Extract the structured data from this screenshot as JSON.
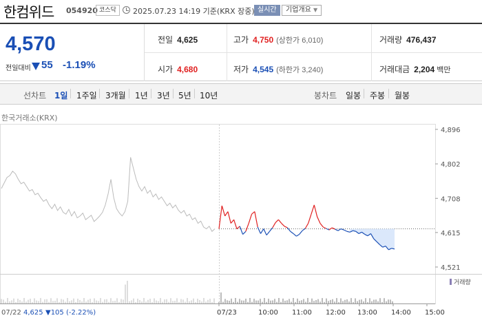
{
  "header": {
    "name": "한컴위드",
    "code": "054920",
    "market": "코스닥",
    "asof": "2025.07.23 14:19 기준(KRX 장중)",
    "realtime": "실시간",
    "company": "기업개요"
  },
  "now": {
    "price": "4,570",
    "compare_label": "전일대비",
    "change": "55",
    "rate": "-1.19%"
  },
  "stats": {
    "prev": {
      "label": "전일",
      "value": "4,625"
    },
    "high": {
      "label": "고가",
      "value": "4,750",
      "sub": "(상한가 6,010)"
    },
    "volume": {
      "label": "거래량",
      "value": "476,437"
    },
    "open": {
      "label": "시가",
      "value": "4,680"
    },
    "low": {
      "label": "저가",
      "value": "4,545",
      "sub": "(하한가 3,240)"
    },
    "amount": {
      "label": "거래대금",
      "value": "2,204",
      "unit": "백만"
    }
  },
  "periods": {
    "line_label": "선차트",
    "line": [
      "1일",
      "1주일",
      "3개월",
      "1년",
      "3년",
      "5년",
      "10년"
    ],
    "active": "1일",
    "candle_label": "봉차트",
    "candle": [
      "일봉",
      "주봉",
      "월봉"
    ]
  },
  "source": "한국거래소(KRX)",
  "colors": {
    "up": "#e02020",
    "down": "#1a4fb5",
    "prev_day": "#bbbbbb",
    "fill": "#dbe8fb"
  },
  "chart_data": {
    "type": "line",
    "y_ticks": [
      "4,896",
      "4,802",
      "4,708",
      "4,615",
      "4,521"
    ],
    "ylim": [
      4521,
      4896
    ],
    "reference": 4625,
    "x_ticks": [
      "07/23",
      "10:00",
      "11:00",
      "12:00",
      "13:00",
      "14:00",
      "15:00"
    ],
    "volume_label": "거래량",
    "prev_day_label": "07/22",
    "prev_day_close": "4,625",
    "prev_day_change": "▼105 (-2.22%)",
    "prev_day_series": [
      4735,
      4750,
      4765,
      4770,
      4782,
      4775,
      4760,
      4748,
      4752,
      4740,
      4728,
      4732,
      4718,
      4722,
      4710,
      4700,
      4705,
      4690,
      4680,
      4692,
      4675,
      4685,
      4670,
      4665,
      4678,
      4660,
      4672,
      4655,
      4660,
      4668,
      4650,
      4656,
      4662,
      4645,
      4652,
      4660,
      4670,
      4690,
      4720,
      4760,
      4710,
      4680,
      4668,
      4660,
      4672,
      4700,
      4820,
      4790,
      4760,
      4740,
      4728,
      4740,
      4722,
      4730,
      4712,
      4720,
      4705,
      4712,
      4700,
      4688,
      4695,
      4682,
      4690,
      4676,
      4668,
      4675,
      4660,
      4665,
      4650,
      4655,
      4640,
      4646,
      4630,
      4625,
      4632,
      4618,
      4625
    ],
    "today_series": [
      4625,
      4688,
      4660,
      4672,
      4640,
      4650,
      4625,
      4632,
      4610,
      4618,
      4640,
      4665,
      4672,
      4630,
      4612,
      4625,
      4608,
      4618,
      4628,
      4642,
      4650,
      4640,
      4632,
      4628,
      4618,
      4612,
      4605,
      4610,
      4620,
      4626,
      4640,
      4665,
      4690,
      4658,
      4640,
      4630,
      4626,
      4622,
      4628,
      4624,
      4620,
      4625,
      4622,
      4618,
      4616,
      4620,
      4618,
      4612,
      4616,
      4610,
      4606,
      4612,
      4598,
      4590,
      4582,
      4575,
      4578,
      4568,
      4572,
      4570
    ]
  }
}
